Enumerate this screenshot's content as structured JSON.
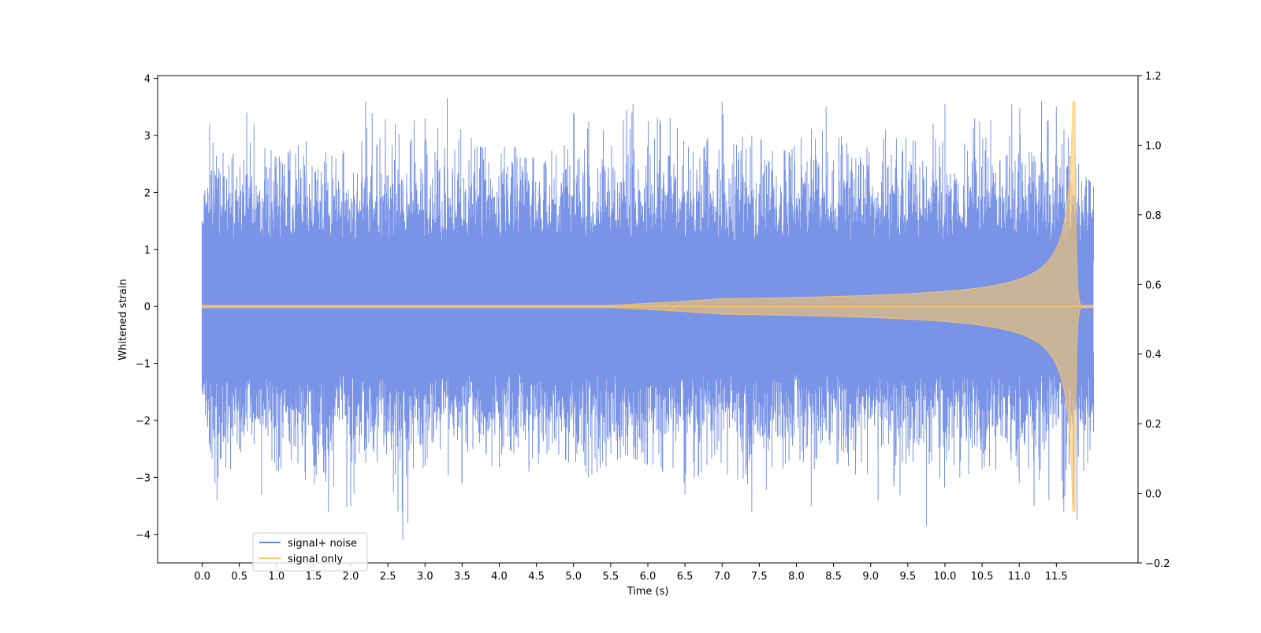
{
  "chart_data": {
    "type": "line",
    "xlabel": "Time (s)",
    "ylabel": "Whitened strain",
    "xlim": [
      -0.6,
      12.6
    ],
    "ylim": [
      -4.5,
      4.05
    ],
    "y2lim": [
      -0.2,
      1.2
    ],
    "x_ticks": [
      0.0,
      0.5,
      1.0,
      1.5,
      2.0,
      2.5,
      3.0,
      3.5,
      4.0,
      4.5,
      5.0,
      5.5,
      6.0,
      6.5,
      7.0,
      7.5,
      8.0,
      8.5,
      9.0,
      9.5,
      10.0,
      10.5,
      11.0,
      11.5
    ],
    "x_tick_labels": [
      "0.0",
      "0.5",
      "1.0",
      "1.5",
      "2.0",
      "2.5",
      "3.0",
      "3.5",
      "4.0",
      "4.5",
      "5.0",
      "5.5",
      "6.0",
      "6.5",
      "7.0",
      "7.5",
      "8.0",
      "8.5",
      "9.0",
      "9.5",
      "10.0",
      "10.5",
      "11.0",
      "11.5"
    ],
    "y_ticks": [
      -4,
      -3,
      -2,
      -1,
      0,
      1,
      2,
      3,
      4
    ],
    "y_tick_labels": [
      "−4",
      "−3",
      "−2",
      "−1",
      "0",
      "1",
      "2",
      "3",
      "4"
    ],
    "y2_ticks": [
      -0.2,
      0.0,
      0.2,
      0.4,
      0.6,
      0.8,
      1.0,
      1.2
    ],
    "y2_tick_labels": [
      "−0.2",
      "0.0",
      "0.2",
      "0.4",
      "0.6",
      "0.8",
      "1.0",
      "1.2"
    ],
    "legend": {
      "placement": "lower-left"
    },
    "grid": false,
    "series": [
      {
        "name": "signal+ noise",
        "color": "#6a87e4",
        "x_range": [
          0.0,
          12.0
        ],
        "envelope_upper": [
          [
            0.0,
            1.5
          ],
          [
            0.1,
            3.2
          ],
          [
            0.4,
            2.6
          ],
          [
            0.6,
            3.4
          ],
          [
            1.0,
            2.6
          ],
          [
            1.4,
            2.9
          ],
          [
            1.8,
            2.6
          ],
          [
            2.2,
            3.6
          ],
          [
            2.6,
            3.2
          ],
          [
            3.0,
            3.3
          ],
          [
            3.3,
            3.65
          ],
          [
            3.7,
            2.8
          ],
          [
            4.2,
            2.8
          ],
          [
            4.6,
            2.5
          ],
          [
            5.0,
            3.4
          ],
          [
            5.4,
            3.1
          ],
          [
            5.8,
            3.55
          ],
          [
            6.3,
            3.3
          ],
          [
            6.7,
            2.6
          ],
          [
            7.0,
            3.6
          ],
          [
            7.4,
            3.0
          ],
          [
            7.9,
            2.7
          ],
          [
            8.4,
            3.5
          ],
          [
            8.8,
            2.6
          ],
          [
            9.2,
            3.1
          ],
          [
            9.6,
            2.9
          ],
          [
            10.0,
            3.55
          ],
          [
            10.4,
            3.3
          ],
          [
            10.9,
            3.55
          ],
          [
            11.3,
            3.6
          ],
          [
            11.5,
            3.5
          ],
          [
            11.8,
            2.5
          ],
          [
            12.0,
            2.1
          ]
        ],
        "envelope_lower": [
          [
            0.0,
            -1.5
          ],
          [
            0.2,
            -3.4
          ],
          [
            0.5,
            -2.5
          ],
          [
            0.8,
            -3.3
          ],
          [
            1.2,
            -2.7
          ],
          [
            1.7,
            -3.6
          ],
          [
            2.0,
            -3.5
          ],
          [
            2.3,
            -2.5
          ],
          [
            2.7,
            -4.1
          ],
          [
            3.0,
            -2.8
          ],
          [
            3.5,
            -3.1
          ],
          [
            3.9,
            -2.8
          ],
          [
            4.4,
            -2.9
          ],
          [
            4.8,
            -2.6
          ],
          [
            5.2,
            -3.0
          ],
          [
            5.7,
            -2.6
          ],
          [
            6.2,
            -2.9
          ],
          [
            6.5,
            -3.3
          ],
          [
            6.9,
            -2.6
          ],
          [
            7.4,
            -3.6
          ],
          [
            7.9,
            -2.7
          ],
          [
            8.2,
            -3.5
          ],
          [
            8.7,
            -2.8
          ],
          [
            9.1,
            -3.4
          ],
          [
            9.75,
            -3.85
          ],
          [
            10.2,
            -3.0
          ],
          [
            10.6,
            -2.8
          ],
          [
            11.0,
            -3.1
          ],
          [
            11.2,
            -3.5
          ],
          [
            11.4,
            -3.4
          ],
          [
            11.6,
            -3.6
          ],
          [
            11.78,
            -3.75
          ],
          [
            12.0,
            -2.2
          ]
        ]
      },
      {
        "name": "signal only",
        "color": "#ffc864",
        "chirp": {
          "start_growth": 7.0,
          "merger_time": 11.75,
          "peak_amplitude": 3.6,
          "ringdown_end": 11.85
        }
      }
    ]
  }
}
